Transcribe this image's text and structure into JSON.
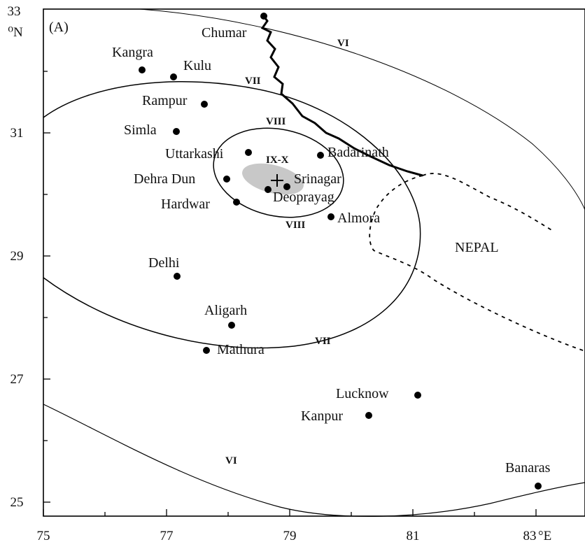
{
  "panel_label": "(A)",
  "axes": {
    "x_ticks": [
      "75",
      "77",
      "79",
      "81",
      "83"
    ],
    "x_unit": "°E",
    "y_ticks": [
      "25",
      "27",
      "29",
      "31",
      "33"
    ],
    "y_unit": "⁰N"
  },
  "country_label": "NEPAL",
  "isoseismal_labels": {
    "vi_top": "VI",
    "vi_bottom": "VI",
    "vii_top": "VII",
    "vii_bottom": "VII",
    "viii_top": "VIII",
    "viii_bottom": "VIII",
    "ix_x": "IX-X"
  },
  "places": [
    {
      "id": "chumar",
      "name": "Chumar"
    },
    {
      "id": "kangra",
      "name": "Kangra"
    },
    {
      "id": "kulu",
      "name": "Kulu"
    },
    {
      "id": "rampur",
      "name": "Rampur"
    },
    {
      "id": "simla",
      "name": "Simla"
    },
    {
      "id": "uttarkashi",
      "name": "Uttarkashi"
    },
    {
      "id": "badarinath",
      "name": "Badarinath"
    },
    {
      "id": "dehra-dun",
      "name": "Dehra Dun"
    },
    {
      "id": "srinagar",
      "name": "Srinagar"
    },
    {
      "id": "deoprayag",
      "name": "Deoprayag"
    },
    {
      "id": "hardwar",
      "name": "Hardwar"
    },
    {
      "id": "almora",
      "name": "Almora"
    },
    {
      "id": "delhi",
      "name": "Delhi"
    },
    {
      "id": "aligarh",
      "name": "Aligarh"
    },
    {
      "id": "mathura",
      "name": "Mathura"
    },
    {
      "id": "lucknow",
      "name": "Lucknow"
    },
    {
      "id": "kanpur",
      "name": "Kanpur"
    },
    {
      "id": "banaras",
      "name": "Banaras"
    }
  ]
}
